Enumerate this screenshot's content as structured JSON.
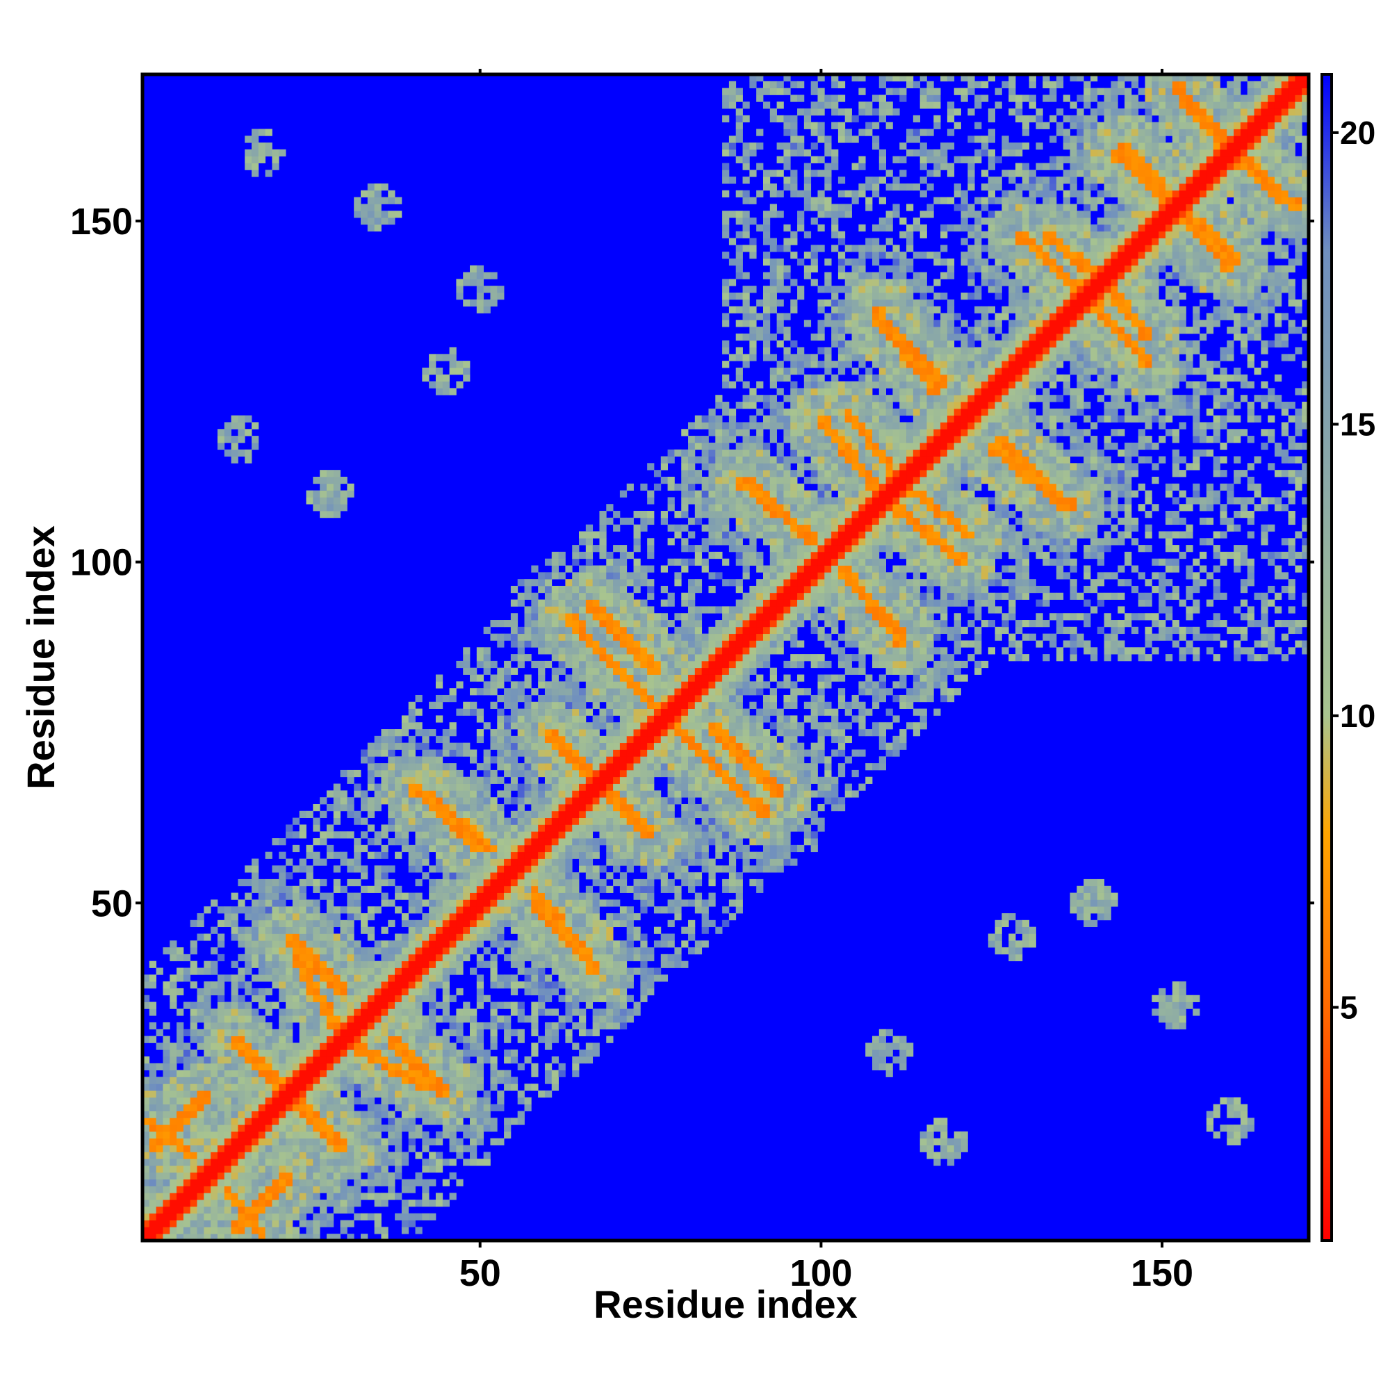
{
  "chart_data": {
    "type": "heatmap",
    "title": "",
    "xlabel": "Residue index",
    "ylabel": "Residue index",
    "n_residues": 171,
    "xlim": [
      1,
      171
    ],
    "ylim": [
      1,
      171
    ],
    "x_ticks": [
      50,
      100,
      150
    ],
    "y_ticks": [
      50,
      100,
      150
    ],
    "x_tick_labels": [
      "50",
      "100",
      "150"
    ],
    "y_tick_labels": [
      "50",
      "100",
      "150"
    ],
    "colorbar": {
      "range": [
        1,
        21
      ],
      "ticks": [
        5,
        10,
        15,
        20
      ],
      "tick_labels": [
        "5",
        "10",
        "15",
        "20"
      ],
      "colors": [
        "#ff0000",
        "#ff6a00",
        "#ffa500",
        "#a8c48f",
        "#6f8fbf",
        "#0000ff"
      ],
      "color_stops": [
        1,
        5,
        8,
        10,
        18,
        21
      ]
    },
    "matrix_values": "Distance map: near diagonal values 1-4 (red); off-diagonal contact stripes ~5-8 (orange); contact neighbourhoods ~9-18 (green/steel); background 21 (blue). Denser contacts in upper-right region (residues 90-171).",
    "contact_stripes": [
      {
        "from": [
          1,
          18
        ],
        "to": [
          8,
          13
        ],
        "value": 6
      },
      {
        "from": [
          14,
          2
        ],
        "to": [
          22,
          10
        ],
        "value": 6
      },
      {
        "from": [
          14,
          30
        ],
        "to": [
          22,
          22
        ],
        "value": 6
      },
      {
        "from": [
          22,
          45
        ],
        "to": [
          30,
          37
        ],
        "value": 6
      },
      {
        "from": [
          30,
          30
        ],
        "to": [
          42,
          23
        ],
        "value": 6
      },
      {
        "from": [
          40,
          67
        ],
        "to": [
          52,
          58
        ],
        "value": 6
      },
      {
        "from": [
          58,
          50
        ],
        "to": [
          66,
          42
        ],
        "value": 6
      },
      {
        "from": [
          60,
          75
        ],
        "to": [
          75,
          60
        ],
        "value": 6
      },
      {
        "from": [
          66,
          94
        ],
        "to": [
          76,
          84
        ],
        "value": 6
      },
      {
        "from": [
          76,
          78
        ],
        "to": [
          92,
          63
        ],
        "value": 6
      },
      {
        "from": [
          88,
          112
        ],
        "to": [
          98,
          104
        ],
        "value": 6
      },
      {
        "from": [
          103,
          99
        ],
        "to": [
          112,
          89
        ],
        "value": 6
      },
      {
        "from": [
          104,
          122
        ],
        "to": [
          113,
          110
        ],
        "value": 6
      },
      {
        "from": [
          111,
          108
        ],
        "to": [
          121,
          100
        ],
        "value": 6
      },
      {
        "from": [
          108,
          137
        ],
        "to": [
          118,
          126
        ],
        "value": 6
      },
      {
        "from": [
          125,
          117
        ],
        "to": [
          136,
          108
        ],
        "value": 6
      },
      {
        "from": [
          133,
          148
        ],
        "to": [
          143,
          140
        ],
        "value": 6
      },
      {
        "from": [
          140,
          138
        ],
        "to": [
          148,
          129
        ],
        "value": 6
      },
      {
        "from": [
          143,
          160
        ],
        "to": [
          154,
          150
        ],
        "value": 6
      },
      {
        "from": [
          153,
          168
        ],
        "to": [
          162,
          158
        ],
        "value": 6
      },
      {
        "from": [
          155,
          150
        ],
        "to": [
          161,
          144
        ],
        "value": 6
      },
      {
        "from": [
          159,
          162
        ],
        "to": [
          170,
          152
        ],
        "value": 6
      }
    ]
  }
}
